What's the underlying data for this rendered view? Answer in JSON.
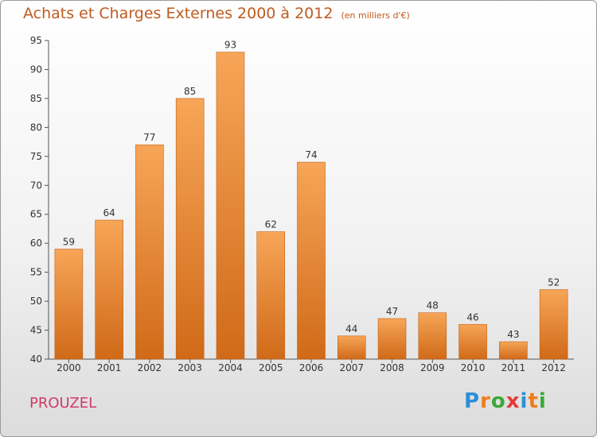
{
  "title": "Achats et Charges Externes 2000 à 2012",
  "subtitle": "(en milliers d'€)",
  "place": "PROUZEL",
  "brand": {
    "letters": [
      "P",
      "r",
      "o",
      "x",
      "i",
      "t",
      "i"
    ],
    "colors": [
      "#2b8fd6",
      "#ef7d1a",
      "#3aa83a",
      "#e43a3a",
      "#2b8fd6",
      "#ef7d1a",
      "#3aa83a"
    ]
  },
  "colors": {
    "bar_top": "#f7a558",
    "bar_bottom": "#d06a18",
    "title": "#bf5a1e",
    "place": "#d23a68"
  },
  "chart_data": {
    "type": "bar",
    "title": "Achats et Charges Externes 2000 à 2012",
    "subtitle": "(en milliers d'€)",
    "categories": [
      "2000",
      "2001",
      "2002",
      "2003",
      "2004",
      "2005",
      "2006",
      "2007",
      "2008",
      "2009",
      "2010",
      "2011",
      "2012"
    ],
    "values": [
      59,
      64,
      77,
      85,
      93,
      62,
      74,
      44,
      47,
      48,
      46,
      43,
      52
    ],
    "ylim": [
      40,
      95
    ],
    "yticks": [
      40,
      45,
      50,
      55,
      60,
      65,
      70,
      75,
      80,
      85,
      90,
      95
    ],
    "grid": false,
    "data_labels": true
  }
}
